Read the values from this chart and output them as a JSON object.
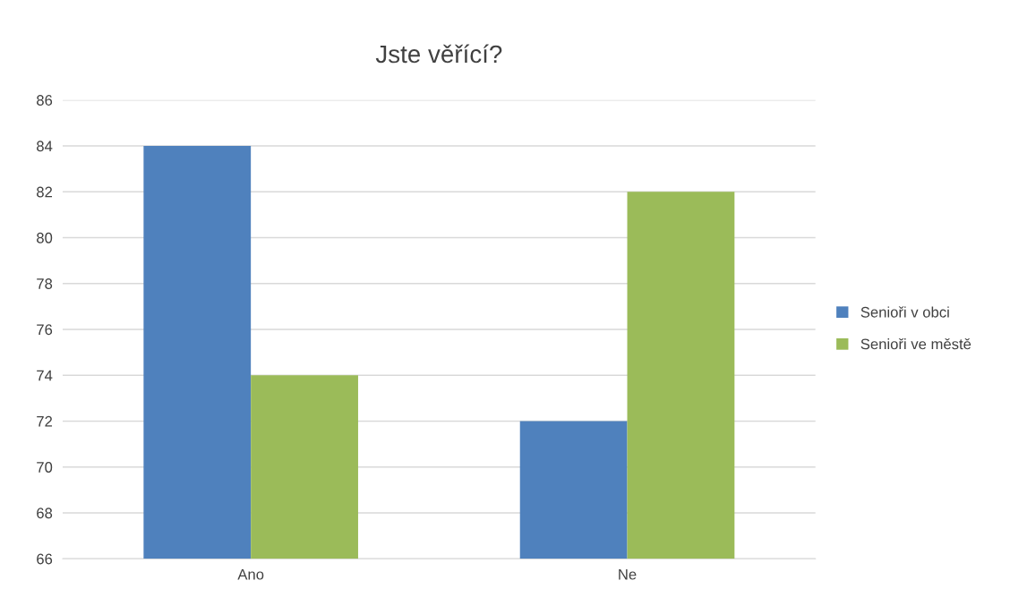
{
  "chart_data": {
    "type": "bar",
    "title": "Jste věřící?",
    "categories": [
      "Ano",
      "Ne"
    ],
    "series": [
      {
        "name": "Senioři v obci",
        "color": "#4f81bd",
        "values": [
          84,
          72
        ]
      },
      {
        "name": "Senioři ve městě",
        "color": "#9bbb59",
        "values": [
          74,
          82
        ]
      }
    ],
    "ylim": [
      66,
      86
    ],
    "yticks": [
      66,
      68,
      70,
      72,
      74,
      76,
      78,
      80,
      82,
      84,
      86
    ],
    "grid": "y",
    "legend": "right"
  }
}
